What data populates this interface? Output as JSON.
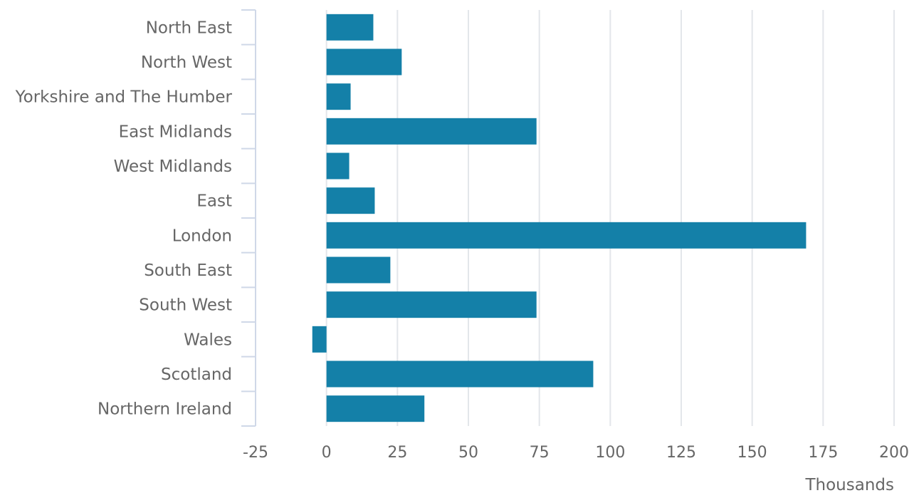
{
  "chart_data": {
    "type": "bar",
    "orientation": "horizontal",
    "categories": [
      "North East",
      "North West",
      "Yorkshire and The Humber",
      "East Midlands",
      "West Midlands",
      "East",
      "London",
      "South East",
      "South West",
      "Wales",
      "Scotland",
      "Northern Ireland"
    ],
    "values": [
      16.5,
      26.5,
      8.5,
      74,
      8,
      17,
      169,
      22.5,
      74,
      -5,
      94,
      34.5
    ],
    "title": "",
    "xlabel": "Thousands",
    "ylabel": "",
    "xlim": [
      -25,
      200
    ],
    "xticks": [
      -25,
      0,
      25,
      50,
      75,
      100,
      125,
      150,
      175,
      200
    ],
    "grid": "vertical",
    "legend": "none",
    "colors": {
      "bar": "#1480a8",
      "grid": "#e3e6ea",
      "axis": "#cfd8e8",
      "text": "#666666"
    }
  }
}
